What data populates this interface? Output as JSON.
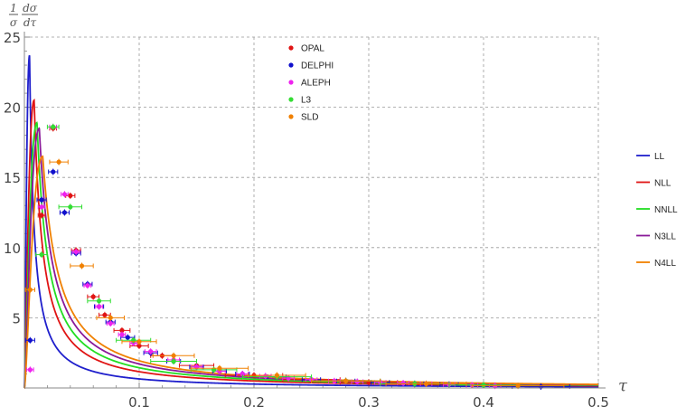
{
  "chart_data": {
    "type": "line",
    "title": "",
    "xlabel": "τ",
    "ylabel": {
      "num": "1",
      "den": "σ",
      "dnum": "dσ",
      "dden": "dτ"
    },
    "xlim": [
      0,
      0.5
    ],
    "ylim": [
      0,
      25
    ],
    "xticks": [
      0.1,
      0.2,
      0.3,
      0.4,
      0.5
    ],
    "xtick_labels": [
      "0.1",
      "0.2",
      "0.3",
      "0.4",
      "0.5"
    ],
    "yticks": [
      5,
      10,
      15,
      20,
      25
    ],
    "ytick_labels": [
      "5",
      "10",
      "15",
      "20",
      "25"
    ],
    "grid": true,
    "legend_curves": {
      "placement": "right"
    },
    "legend_data": {
      "placement": "top-center"
    },
    "curves": [
      {
        "name": "LL",
        "color": "#1f1fcc",
        "peak": 0.0045,
        "height": 23.7
      },
      {
        "name": "NLL",
        "color": "#e01414",
        "peak": 0.0085,
        "height": 20.5
      },
      {
        "name": "NNLL",
        "color": "#22dd22",
        "peak": 0.011,
        "height": 18.9
      },
      {
        "name": "N3LL",
        "color": "#8a1a99",
        "peak": 0.013,
        "height": 18.5
      },
      {
        "name": "N4LL",
        "color": "#f08000",
        "peak": 0.016,
        "height": 16.5
      }
    ],
    "datasets": [
      {
        "name": "OPAL",
        "color": "#e01414",
        "points": [
          [
            0.015,
            12.3
          ],
          [
            0.025,
            18.5
          ],
          [
            0.04,
            13.7
          ],
          [
            0.045,
            9.8
          ],
          [
            0.06,
            6.5
          ],
          [
            0.07,
            5.2
          ],
          [
            0.085,
            4.1
          ],
          [
            0.1,
            3.0
          ],
          [
            0.12,
            2.3
          ],
          [
            0.15,
            1.6
          ],
          [
            0.2,
            0.9
          ],
          [
            0.25,
            0.6
          ],
          [
            0.3,
            0.4
          ]
        ],
        "xerr": [
          0.003,
          0.003,
          0.004,
          0.004,
          0.005,
          0.005,
          0.007,
          0.008,
          0.01,
          0.015,
          0.025,
          0.025,
          0.025
        ]
      },
      {
        "name": "DELPHI",
        "color": "#1010cc",
        "points": [
          [
            0.005,
            3.4
          ],
          [
            0.015,
            13.4
          ],
          [
            0.025,
            15.4
          ],
          [
            0.035,
            12.5
          ],
          [
            0.045,
            9.6
          ],
          [
            0.055,
            7.4
          ],
          [
            0.065,
            5.8
          ],
          [
            0.075,
            4.7
          ],
          [
            0.09,
            3.6
          ],
          [
            0.11,
            2.5
          ],
          [
            0.13,
            1.9
          ],
          [
            0.15,
            1.5
          ],
          [
            0.17,
            1.2
          ],
          [
            0.19,
            1.0
          ],
          [
            0.22,
            0.8
          ],
          [
            0.25,
            0.6
          ],
          [
            0.28,
            0.5
          ],
          [
            0.31,
            0.4
          ],
          [
            0.34,
            0.3
          ],
          [
            0.37,
            0.25
          ],
          [
            0.4,
            0.2
          ],
          [
            0.45,
            0.1
          ]
        ],
        "xerr": [
          0.004,
          0.004,
          0.004,
          0.004,
          0.004,
          0.004,
          0.004,
          0.004,
          0.006,
          0.006,
          0.006,
          0.006,
          0.006,
          0.006,
          0.008,
          0.008,
          0.008,
          0.008,
          0.008,
          0.008,
          0.01,
          0.025
        ]
      },
      {
        "name": "ALEPH",
        "color": "#ee22ee",
        "points": [
          [
            0.005,
            1.3
          ],
          [
            0.015,
            12.9
          ],
          [
            0.025,
            18.6
          ],
          [
            0.035,
            13.8
          ],
          [
            0.045,
            9.7
          ],
          [
            0.055,
            7.3
          ],
          [
            0.065,
            5.8
          ],
          [
            0.075,
            4.6
          ],
          [
            0.085,
            3.8
          ],
          [
            0.095,
            3.2
          ],
          [
            0.11,
            2.6
          ],
          [
            0.13,
            2.0
          ],
          [
            0.15,
            1.5
          ],
          [
            0.17,
            1.2
          ],
          [
            0.19,
            1.0
          ],
          [
            0.21,
            0.85
          ],
          [
            0.23,
            0.7
          ],
          [
            0.25,
            0.6
          ],
          [
            0.27,
            0.5
          ],
          [
            0.29,
            0.45
          ],
          [
            0.31,
            0.4
          ],
          [
            0.33,
            0.35
          ],
          [
            0.35,
            0.3
          ],
          [
            0.37,
            0.25
          ],
          [
            0.39,
            0.2
          ],
          [
            0.41,
            0.15
          ]
        ],
        "xerr": [
          0.003,
          0.003,
          0.003,
          0.003,
          0.003,
          0.003,
          0.003,
          0.003,
          0.003,
          0.003,
          0.005,
          0.005,
          0.005,
          0.005,
          0.005,
          0.005,
          0.005,
          0.005,
          0.005,
          0.005,
          0.005,
          0.005,
          0.005,
          0.005,
          0.005,
          0.005
        ]
      },
      {
        "name": "L3",
        "color": "#33dd33",
        "points": [
          [
            0.015,
            9.5
          ],
          [
            0.025,
            18.6
          ],
          [
            0.04,
            12.9
          ],
          [
            0.065,
            6.2
          ],
          [
            0.095,
            3.4
          ],
          [
            0.13,
            1.9
          ],
          [
            0.165,
            1.3
          ],
          [
            0.22,
            0.8
          ],
          [
            0.28,
            0.5
          ],
          [
            0.34,
            0.3
          ],
          [
            0.4,
            0.2
          ]
        ],
        "xerr": [
          0.005,
          0.005,
          0.01,
          0.01,
          0.015,
          0.02,
          0.02,
          0.03,
          0.03,
          0.03,
          0.03
        ]
      },
      {
        "name": "SLD",
        "color": "#f08000",
        "points": [
          [
            0.005,
            7.0
          ],
          [
            0.03,
            16.1
          ],
          [
            0.05,
            8.7
          ],
          [
            0.075,
            5.0
          ],
          [
            0.1,
            3.3
          ],
          [
            0.13,
            2.3
          ],
          [
            0.17,
            1.4
          ],
          [
            0.22,
            0.9
          ],
          [
            0.28,
            0.5
          ],
          [
            0.35,
            0.3
          ],
          [
            0.43,
            0.15
          ]
        ],
        "xerr": [
          0.004,
          0.008,
          0.01,
          0.012,
          0.015,
          0.018,
          0.025,
          0.025,
          0.03,
          0.035,
          0.04
        ]
      }
    ]
  }
}
